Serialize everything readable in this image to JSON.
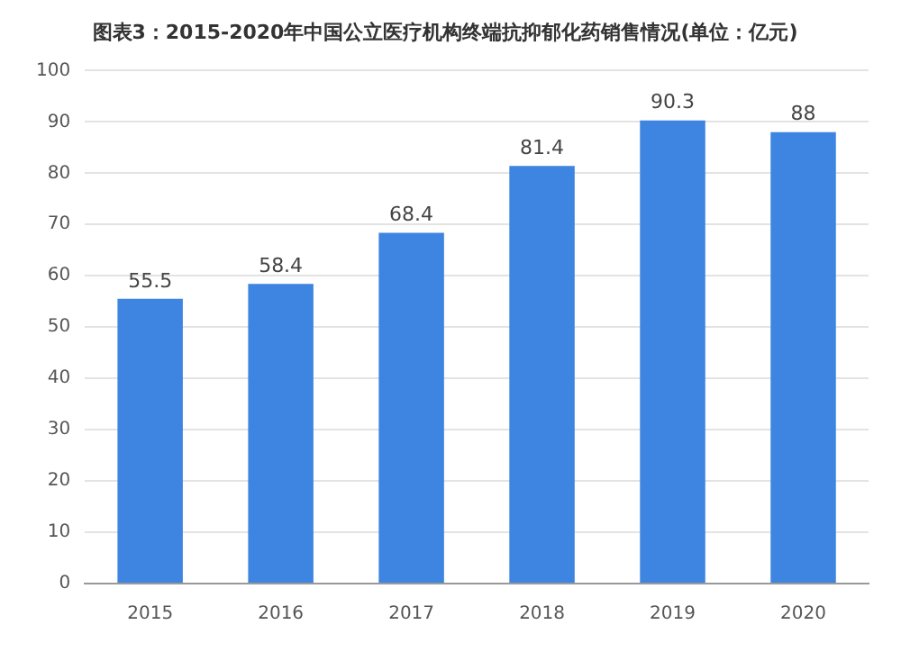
{
  "chart_data": {
    "type": "bar",
    "title": "图表3：2015-2020年中国公立医疗机构终端抗抑郁化药销售情况(单位：亿元)",
    "categories": [
      "2015",
      "2016",
      "2017",
      "2018",
      "2019",
      "2020"
    ],
    "values": [
      55.5,
      58.4,
      68.4,
      81.4,
      90.3,
      88
    ],
    "color": "#3d85e0",
    "ylim": [
      0,
      100
    ],
    "yticks": [
      0,
      10,
      20,
      30,
      40,
      50,
      60,
      70,
      80,
      90,
      100
    ],
    "grid": "y",
    "data_labels": true
  }
}
